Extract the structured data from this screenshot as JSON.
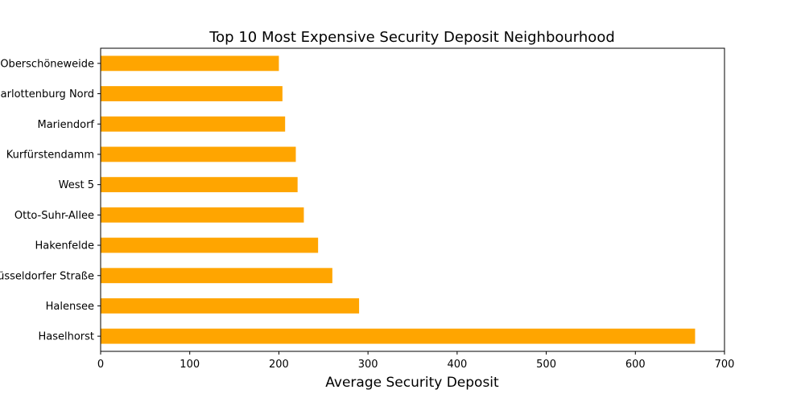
{
  "chart_data": {
    "type": "bar",
    "orientation": "horizontal",
    "title": "Top 10 Most Expensive Security Deposit Neighbourhood",
    "xlabel": "Average Security Deposit",
    "ylabel": "",
    "categories": [
      "Haselhorst",
      "Halensee",
      "Düsseldorfer Straße",
      "Hakenfelde",
      "Otto-Suhr-Allee",
      "West 5",
      "Kurfürstendamm",
      "Mariendorf",
      "Charlottenburg Nord",
      "Oberschöneweide"
    ],
    "values": [
      667,
      290,
      260,
      244,
      228,
      221,
      219,
      207,
      204,
      200
    ],
    "xlim": [
      0,
      700
    ],
    "xticks": [
      0,
      100,
      200,
      300,
      400,
      500,
      600,
      700
    ],
    "bar_color": "#ffa500",
    "grid": false,
    "legend": "none"
  }
}
